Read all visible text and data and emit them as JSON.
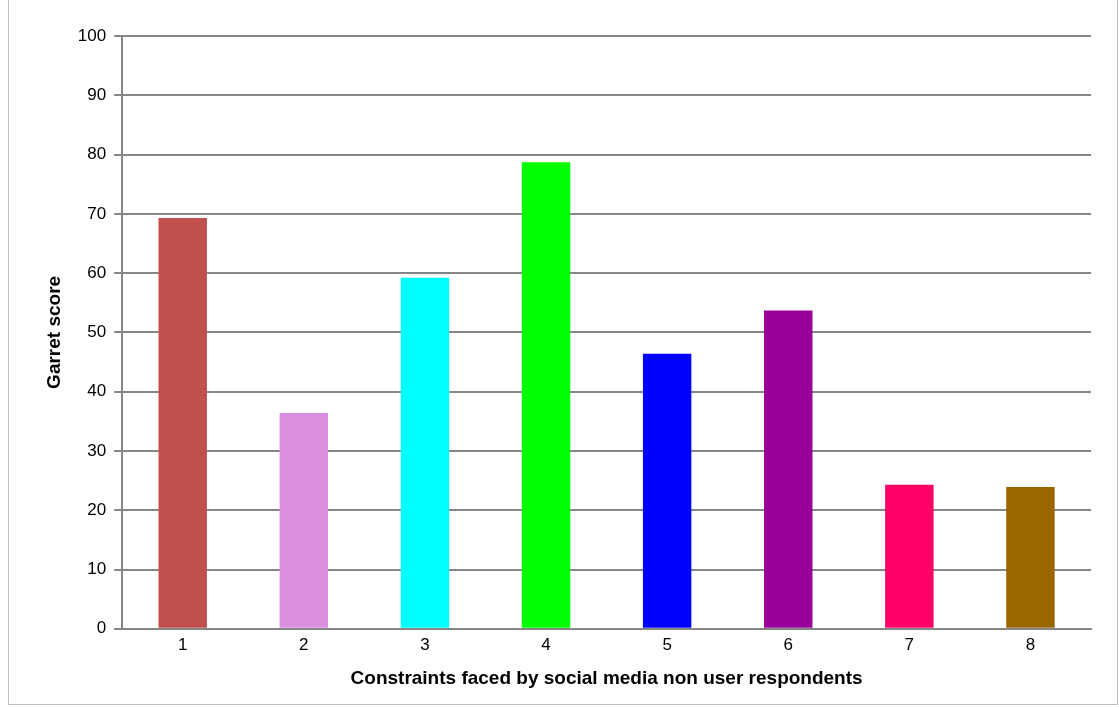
{
  "chart_data": {
    "type": "bar",
    "xlabel": "Constraints faced by social media non user respondents",
    "ylabel": "Garret score",
    "categories": [
      "1",
      "2",
      "3",
      "4",
      "5",
      "6",
      "7",
      "8"
    ],
    "values": [
      69.3,
      36.4,
      59.2,
      78.7,
      46.4,
      53.7,
      24.3,
      23.9
    ],
    "colors": [
      "#c0504d",
      "#da8ee0",
      "#00ffff",
      "#00ff00",
      "#0000ff",
      "#990099",
      "#ff0066",
      "#996600"
    ],
    "ylim": [
      0,
      100
    ],
    "yticks": [
      0,
      10,
      20,
      30,
      40,
      50,
      60,
      70,
      80,
      90,
      100
    ],
    "grid": "y",
    "legend": false
  }
}
